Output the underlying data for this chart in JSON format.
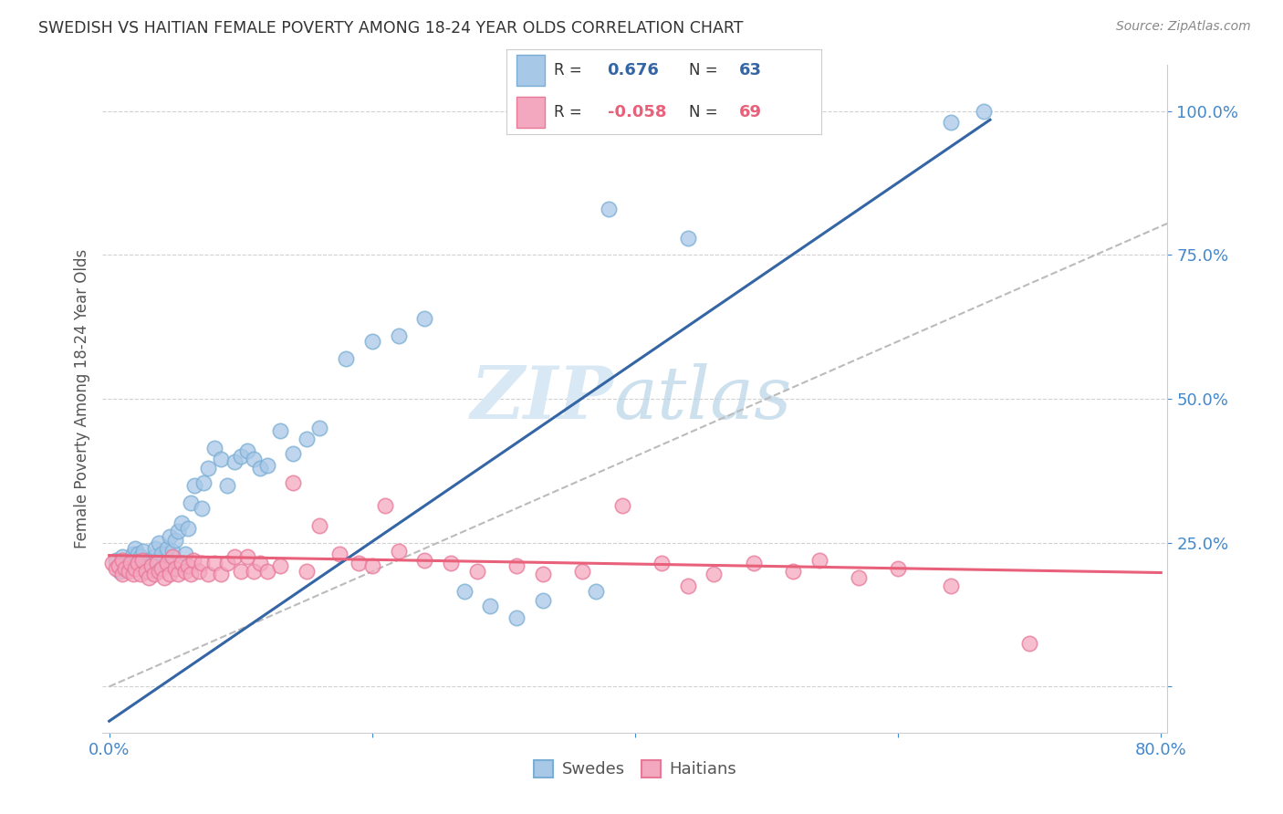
{
  "title": "SWEDISH VS HAITIAN FEMALE POVERTY AMONG 18-24 YEAR OLDS CORRELATION CHART",
  "source": "Source: ZipAtlas.com",
  "ylabel": "Female Poverty Among 18-24 Year Olds",
  "xlim": [
    -0.005,
    0.805
  ],
  "ylim": [
    -0.08,
    1.08
  ],
  "xticks": [
    0.0,
    0.2,
    0.4,
    0.6,
    0.8
  ],
  "xticklabels": [
    "0.0%",
    "",
    "",
    "",
    "80.0%"
  ],
  "yticks": [
    0.0,
    0.25,
    0.5,
    0.75,
    1.0
  ],
  "yticklabels_right": [
    "",
    "25.0%",
    "50.0%",
    "75.0%",
    "100.0%"
  ],
  "blue_color": "#a8c8e8",
  "pink_color": "#f4a8c0",
  "blue_edge_color": "#7aaed4",
  "pink_edge_color": "#e87898",
  "blue_line_color": "#3465a4",
  "pink_line_color": "#e8607a",
  "axis_color": "#4488cc",
  "grid_color": "#cccccc",
  "watermark_color": "#d8e8f4",
  "ref_line_color": "#bbbbbb",
  "blue_R": "0.676",
  "blue_N": "63",
  "pink_R": "-0.058",
  "pink_N": "69",
  "legend_text_color": "#333333",
  "blue_trend_x": [
    0.0,
    0.67
  ],
  "blue_trend_y": [
    -0.06,
    0.985
  ],
  "pink_trend_x": [
    0.0,
    0.8
  ],
  "pink_trend_y": [
    0.228,
    0.198
  ],
  "ref_line_x": [
    0.0,
    1.0
  ],
  "ref_line_y": [
    0.0,
    1.0
  ],
  "blue_scatter_x": [
    0.005,
    0.008,
    0.01,
    0.012,
    0.015,
    0.016,
    0.018,
    0.02,
    0.02,
    0.022,
    0.022,
    0.024,
    0.024,
    0.026,
    0.028,
    0.03,
    0.03,
    0.032,
    0.034,
    0.035,
    0.038,
    0.038,
    0.04,
    0.042,
    0.044,
    0.046,
    0.048,
    0.05,
    0.052,
    0.055,
    0.058,
    0.06,
    0.062,
    0.065,
    0.07,
    0.072,
    0.075,
    0.08,
    0.085,
    0.09,
    0.095,
    0.1,
    0.105,
    0.11,
    0.115,
    0.12,
    0.13,
    0.14,
    0.15,
    0.16,
    0.18,
    0.2,
    0.22,
    0.24,
    0.27,
    0.29,
    0.31,
    0.33,
    0.37,
    0.38,
    0.44,
    0.64,
    0.665
  ],
  "blue_scatter_y": [
    0.22,
    0.2,
    0.225,
    0.215,
    0.205,
    0.22,
    0.23,
    0.215,
    0.24,
    0.21,
    0.23,
    0.215,
    0.225,
    0.235,
    0.215,
    0.2,
    0.22,
    0.215,
    0.225,
    0.24,
    0.22,
    0.25,
    0.23,
    0.21,
    0.24,
    0.26,
    0.235,
    0.255,
    0.27,
    0.285,
    0.23,
    0.275,
    0.32,
    0.35,
    0.31,
    0.355,
    0.38,
    0.415,
    0.395,
    0.35,
    0.39,
    0.4,
    0.41,
    0.395,
    0.38,
    0.385,
    0.445,
    0.405,
    0.43,
    0.45,
    0.57,
    0.6,
    0.61,
    0.64,
    0.165,
    0.14,
    0.12,
    0.15,
    0.165,
    0.83,
    0.78,
    0.98,
    1.0
  ],
  "pink_scatter_x": [
    0.002,
    0.005,
    0.007,
    0.01,
    0.01,
    0.012,
    0.015,
    0.016,
    0.018,
    0.02,
    0.022,
    0.024,
    0.025,
    0.028,
    0.03,
    0.032,
    0.034,
    0.036,
    0.038,
    0.04,
    0.042,
    0.044,
    0.046,
    0.048,
    0.05,
    0.052,
    0.055,
    0.058,
    0.06,
    0.062,
    0.064,
    0.068,
    0.07,
    0.075,
    0.08,
    0.085,
    0.09,
    0.095,
    0.1,
    0.105,
    0.11,
    0.115,
    0.12,
    0.13,
    0.14,
    0.15,
    0.16,
    0.175,
    0.19,
    0.2,
    0.21,
    0.22,
    0.24,
    0.26,
    0.28,
    0.31,
    0.33,
    0.36,
    0.39,
    0.42,
    0.44,
    0.46,
    0.49,
    0.52,
    0.54,
    0.57,
    0.6,
    0.64,
    0.7
  ],
  "pink_scatter_y": [
    0.215,
    0.205,
    0.21,
    0.195,
    0.22,
    0.205,
    0.2,
    0.215,
    0.195,
    0.205,
    0.215,
    0.195,
    0.22,
    0.2,
    0.19,
    0.21,
    0.195,
    0.215,
    0.2,
    0.205,
    0.19,
    0.215,
    0.195,
    0.225,
    0.205,
    0.195,
    0.215,
    0.2,
    0.21,
    0.195,
    0.22,
    0.2,
    0.215,
    0.195,
    0.215,
    0.195,
    0.215,
    0.225,
    0.2,
    0.225,
    0.2,
    0.215,
    0.2,
    0.21,
    0.355,
    0.2,
    0.28,
    0.23,
    0.215,
    0.21,
    0.315,
    0.235,
    0.22,
    0.215,
    0.2,
    0.21,
    0.195,
    0.2,
    0.315,
    0.215,
    0.175,
    0.195,
    0.215,
    0.2,
    0.22,
    0.19,
    0.205,
    0.175,
    0.075
  ]
}
